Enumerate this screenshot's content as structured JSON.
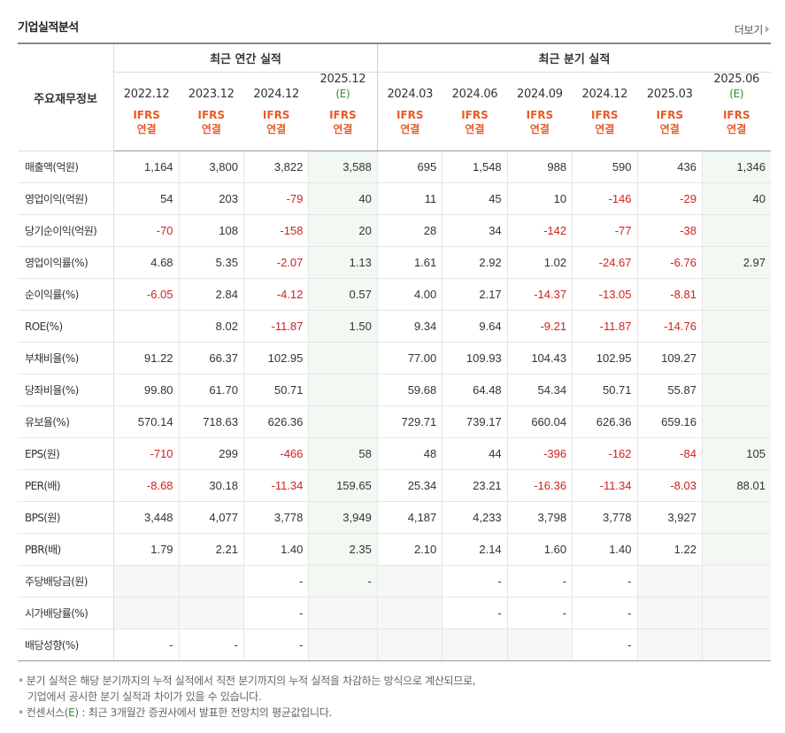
{
  "header": {
    "title": "기업실적분석",
    "more_label": "더보기"
  },
  "table": {
    "row_header": "주요재무정보",
    "group_annual": "최근 연간 실적",
    "group_quarter": "최근 분기 실적",
    "estimate_mark": "(E)",
    "columns": [
      {
        "period": "2022.12",
        "estimate": false,
        "std1": "IFRS",
        "std2": "연결"
      },
      {
        "period": "2023.12",
        "estimate": false,
        "std1": "IFRS",
        "std2": "연결"
      },
      {
        "period": "2024.12",
        "estimate": false,
        "std1": "IFRS",
        "std2": "연결"
      },
      {
        "period": "2025.12",
        "estimate": true,
        "std1": "IFRS",
        "std2": "연결"
      },
      {
        "period": "2024.03",
        "estimate": false,
        "std1": "IFRS",
        "std2": "연결"
      },
      {
        "period": "2024.06",
        "estimate": false,
        "std1": "IFRS",
        "std2": "연결"
      },
      {
        "period": "2024.09",
        "estimate": false,
        "std1": "IFRS",
        "std2": "연결"
      },
      {
        "period": "2024.12",
        "estimate": false,
        "std1": "IFRS",
        "std2": "연결"
      },
      {
        "period": "2025.03",
        "estimate": false,
        "std1": "IFRS",
        "std2": "연결"
      },
      {
        "period": "2025.06",
        "estimate": true,
        "std1": "IFRS",
        "std2": "연결"
      }
    ],
    "rows": [
      {
        "label": "매출액(억원)",
        "values": [
          "1,164",
          "3,800",
          "3,822",
          "3,588",
          "695",
          "1,548",
          "988",
          "590",
          "436",
          "1,346"
        ]
      },
      {
        "label": "영업이익(억원)",
        "values": [
          "54",
          "203",
          "-79",
          "40",
          "11",
          "45",
          "10",
          "-146",
          "-29",
          "40"
        ]
      },
      {
        "label": "당기순이익(억원)",
        "values": [
          "-70",
          "108",
          "-158",
          "20",
          "28",
          "34",
          "-142",
          "-77",
          "-38",
          ""
        ]
      },
      {
        "label": "영업이익률(%)",
        "values": [
          "4.68",
          "5.35",
          "-2.07",
          "1.13",
          "1.61",
          "2.92",
          "1.02",
          "-24.67",
          "-6.76",
          "2.97"
        ]
      },
      {
        "label": "순이익률(%)",
        "values": [
          "-6.05",
          "2.84",
          "-4.12",
          "0.57",
          "4.00",
          "2.17",
          "-14.37",
          "-13.05",
          "-8.81",
          ""
        ]
      },
      {
        "label": "ROE(%)",
        "values": [
          "",
          "8.02",
          "-11.87",
          "1.50",
          "9.34",
          "9.64",
          "-9.21",
          "-11.87",
          "-14.76",
          ""
        ]
      },
      {
        "label": "부채비율(%)",
        "values": [
          "91.22",
          "66.37",
          "102.95",
          "",
          "77.00",
          "109.93",
          "104.43",
          "102.95",
          "109.27",
          ""
        ]
      },
      {
        "label": "당좌비율(%)",
        "values": [
          "99.80",
          "61.70",
          "50.71",
          "",
          "59.68",
          "64.48",
          "54.34",
          "50.71",
          "55.87",
          ""
        ]
      },
      {
        "label": "유보율(%)",
        "values": [
          "570.14",
          "718.63",
          "626.36",
          "",
          "729.71",
          "739.17",
          "660.04",
          "626.36",
          "659.16",
          ""
        ]
      },
      {
        "label": "EPS(원)",
        "values": [
          "-710",
          "299",
          "-466",
          "58",
          "48",
          "44",
          "-396",
          "-162",
          "-84",
          "105"
        ]
      },
      {
        "label": "PER(배)",
        "values": [
          "-8.68",
          "30.18",
          "-11.34",
          "159.65",
          "25.34",
          "23.21",
          "-16.36",
          "-11.34",
          "-8.03",
          "88.01"
        ]
      },
      {
        "label": "BPS(원)",
        "values": [
          "3,448",
          "4,077",
          "3,778",
          "3,949",
          "4,187",
          "4,233",
          "3,798",
          "3,778",
          "3,927",
          ""
        ]
      },
      {
        "label": "PBR(배)",
        "values": [
          "1.79",
          "2.21",
          "1.40",
          "2.35",
          "2.10",
          "2.14",
          "1.60",
          "1.40",
          "1.22",
          ""
        ]
      },
      {
        "label": "주당배당금(원)",
        "values": [
          "",
          "",
          "-",
          "-",
          "",
          "-",
          "-",
          "-",
          "",
          ""
        ]
      },
      {
        "label": "시가배당률(%)",
        "values": [
          "",
          "",
          "-",
          "",
          "",
          "-",
          "-",
          "-",
          "",
          ""
        ]
      },
      {
        "label": "배당성향(%)",
        "values": [
          "-",
          "-",
          "-",
          "",
          "",
          "",
          "",
          "-",
          "",
          ""
        ]
      }
    ],
    "no_data_cells": [
      [
        13,
        0
      ],
      [
        13,
        1
      ],
      [
        13,
        4
      ],
      [
        13,
        8
      ],
      [
        13,
        9
      ],
      [
        14,
        0
      ],
      [
        14,
        1
      ],
      [
        14,
        3
      ],
      [
        14,
        4
      ],
      [
        14,
        8
      ],
      [
        14,
        9
      ],
      [
        15,
        3
      ],
      [
        15,
        4
      ],
      [
        15,
        5
      ],
      [
        15,
        6
      ],
      [
        15,
        8
      ],
      [
        15,
        9
      ]
    ],
    "group_start_rows": [
      3,
      6,
      9,
      13
    ]
  },
  "notes": {
    "line1": "분기 실적은 해당 분기까지의 누적 실적에서 직전 분기까지의 누적 실적을 차감하는 방식으로 계산되므로,",
    "line1b": "기업에서 공시한 분기 실적과 차이가 있을 수 있습니다.",
    "line2_prefix": "컨센서스(",
    "line2_mark": "E",
    "line2_suffix": ") : 최근 3개월간 증권사에서 발표한 전망치의 평균값입니다."
  },
  "colors": {
    "negative": "#d22020",
    "ifrs": "#e85a28",
    "estimate": "#2e8b3a",
    "estimate_bg": "#f2f9f2"
  }
}
